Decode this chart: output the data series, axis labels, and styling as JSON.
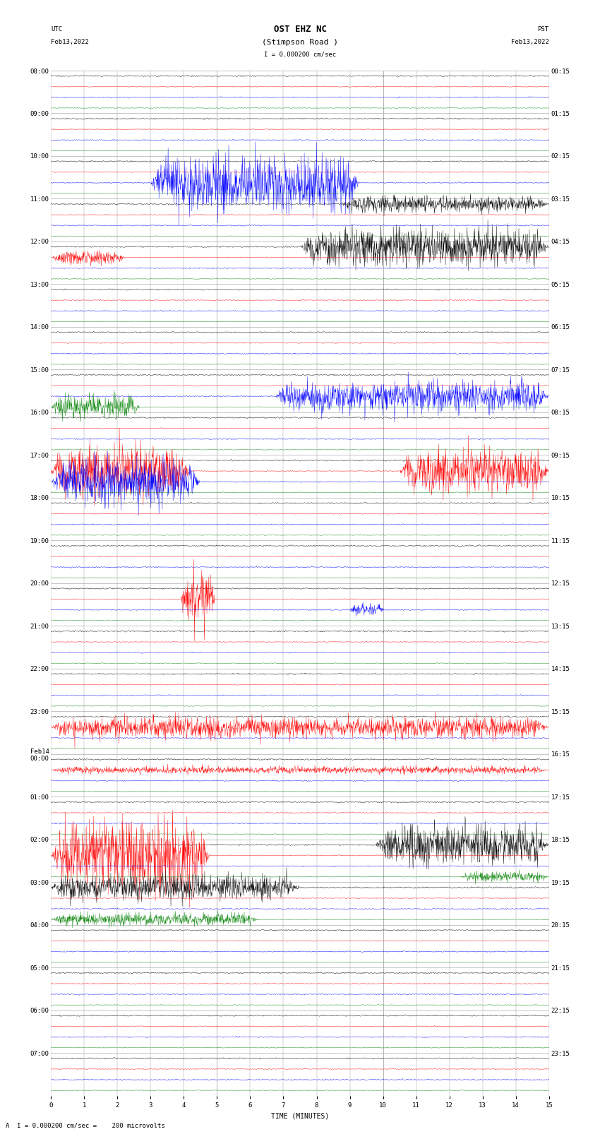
{
  "title_line1": "OST EHZ NC",
  "title_line2": "(Stimpson Road )",
  "scale_text": "I = 0.000200 cm/sec",
  "bottom_text": "A  I = 0.000200 cm/sec =    200 microvolts",
  "utc_label1": "UTC",
  "utc_label2": "Feb13,2022",
  "pst_label1": "PST",
  "pst_label2": "Feb13,2022",
  "xlabel": "TIME (MINUTES)",
  "left_times": [
    "08:00",
    "09:00",
    "10:00",
    "11:00",
    "12:00",
    "13:00",
    "14:00",
    "15:00",
    "16:00",
    "17:00",
    "18:00",
    "19:00",
    "20:00",
    "21:00",
    "22:00",
    "23:00",
    "Feb14\n00:00",
    "01:00",
    "02:00",
    "03:00",
    "04:00",
    "05:00",
    "06:00",
    "07:00"
  ],
  "right_times": [
    "00:15",
    "01:15",
    "02:15",
    "03:15",
    "04:15",
    "05:15",
    "06:15",
    "07:15",
    "08:15",
    "09:15",
    "10:15",
    "11:15",
    "12:15",
    "13:15",
    "14:15",
    "15:15",
    "16:15",
    "17:15",
    "18:15",
    "19:15",
    "20:15",
    "21:15",
    "22:15",
    "23:15"
  ],
  "n_rows": 24,
  "traces_per_row": 4,
  "colors": [
    "black",
    "red",
    "blue",
    "green"
  ],
  "bg_color": "white",
  "grid_color": "#999999",
  "fig_width": 8.5,
  "fig_height": 16.13,
  "label_fontsize": 6.5,
  "title_fontsize": 9
}
